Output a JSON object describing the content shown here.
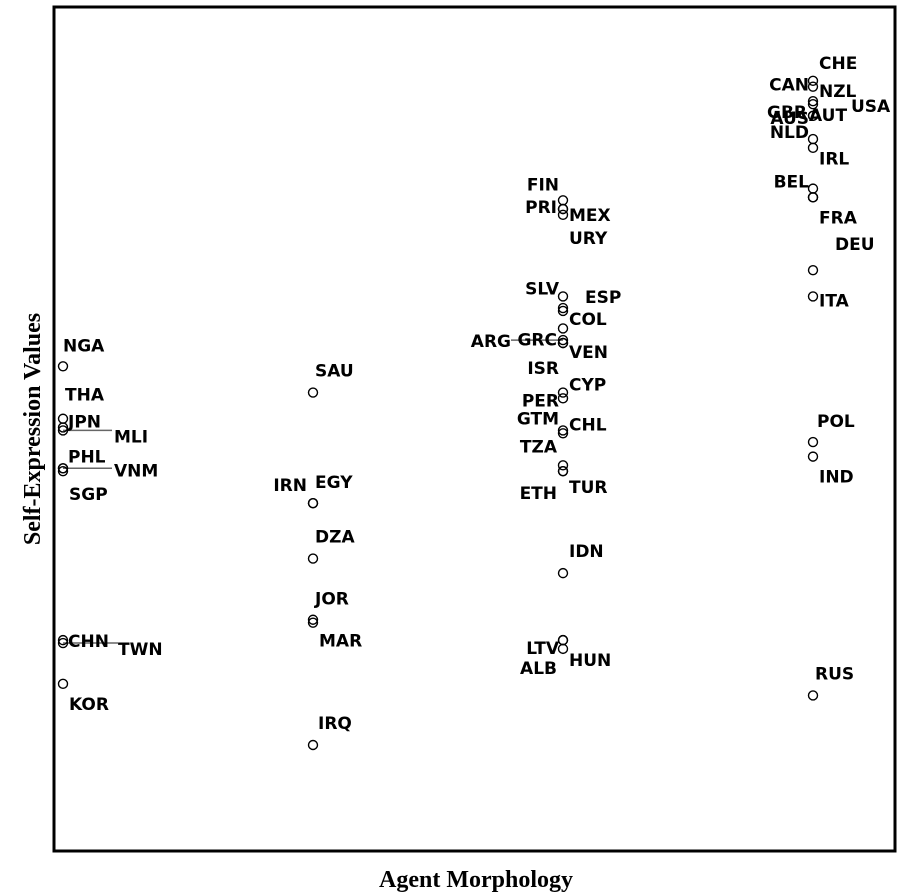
{
  "chart_data": {
    "type": "scatter",
    "title": "",
    "xlabel": "Agent Morphology",
    "ylabel": "Self-Expression Values",
    "xlim": [
      1,
      4
    ],
    "ylim": [
      -0.75,
      2.25
    ],
    "grid": false,
    "legend": "none",
    "points": [
      {
        "label": "CHE",
        "x": 4,
        "y": 2.16
      },
      {
        "label": "CAN",
        "x": 4,
        "y": 2.14
      },
      {
        "label": "NZL",
        "x": 4,
        "y": 2.09
      },
      {
        "label": "USA",
        "x": 4,
        "y": 2.08
      },
      {
        "label": "GBR",
        "x": 4,
        "y": 2.04
      },
      {
        "label": "AUS",
        "x": 4,
        "y": 2.04
      },
      {
        "label": "AUT",
        "x": 4,
        "y": 1.96
      },
      {
        "label": "NLD",
        "x": 4,
        "y": 1.93
      },
      {
        "label": "IRL",
        "x": 4,
        "y": 1.79
      },
      {
        "label": "BEL",
        "x": 4,
        "y": 1.76
      },
      {
        "label": "FRA",
        "x": 4,
        "y": 1.76
      },
      {
        "label": "DEU",
        "x": 4,
        "y": 1.51
      },
      {
        "label": "ITA",
        "x": 4,
        "y": 1.42
      },
      {
        "label": "POL",
        "x": 4,
        "y": 0.92
      },
      {
        "label": "IND",
        "x": 4,
        "y": 0.87
      },
      {
        "label": "RUS",
        "x": 4,
        "y": 0.05
      },
      {
        "label": "FIN",
        "x": 3,
        "y": 1.75
      },
      {
        "label": "MEX",
        "x": 3,
        "y": 1.72
      },
      {
        "label": "PRI",
        "x": 3,
        "y": 1.72
      },
      {
        "label": "URY",
        "x": 3,
        "y": 1.7
      },
      {
        "label": "SLV",
        "x": 3,
        "y": 1.42
      },
      {
        "label": "ESP",
        "x": 3,
        "y": 1.38
      },
      {
        "label": "COL",
        "x": 3,
        "y": 1.37
      },
      {
        "label": "GRC",
        "x": 3,
        "y": 1.31
      },
      {
        "label": "ARG",
        "x": 3,
        "y": 1.27
      },
      {
        "label": "VEN",
        "x": 3,
        "y": 1.26
      },
      {
        "label": "ISR",
        "x": 3,
        "y": 1.26
      },
      {
        "label": "PER",
        "x": 3,
        "y": 1.09
      },
      {
        "label": "CYP",
        "x": 3,
        "y": 1.07
      },
      {
        "label": "GTM",
        "x": 3,
        "y": 0.96
      },
      {
        "label": "CHL",
        "x": 3,
        "y": 0.95
      },
      {
        "label": "TZA",
        "x": 3,
        "y": 0.84
      },
      {
        "label": "TUR",
        "x": 3,
        "y": 0.82
      },
      {
        "label": "ETH",
        "x": 3,
        "y": 0.82
      },
      {
        "label": "IDN",
        "x": 3,
        "y": 0.47
      },
      {
        "label": "ALB",
        "x": 3,
        "y": 0.24
      },
      {
        "label": "LTV",
        "x": 3,
        "y": 0.24
      },
      {
        "label": "HUN",
        "x": 3,
        "y": 0.21
      },
      {
        "label": "SAU",
        "x": 2,
        "y": 1.09
      },
      {
        "label": "IRN",
        "x": 2,
        "y": 0.71
      },
      {
        "label": "EGY",
        "x": 2,
        "y": 0.71
      },
      {
        "label": "DZA",
        "x": 2,
        "y": 0.52
      },
      {
        "label": "JOR",
        "x": 2,
        "y": 0.31
      },
      {
        "label": "MAR",
        "x": 2,
        "y": 0.3
      },
      {
        "label": "IRQ",
        "x": 2,
        "y": -0.12
      },
      {
        "label": "NGA",
        "x": 1,
        "y": 1.18
      },
      {
        "label": "THA",
        "x": 1,
        "y": 1.0
      },
      {
        "label": "JPN",
        "x": 1,
        "y": 0.97
      },
      {
        "label": "MLI",
        "x": 1,
        "y": 0.96
      },
      {
        "label": "PHL",
        "x": 1,
        "y": 0.83
      },
      {
        "label": "VNM",
        "x": 1,
        "y": 0.83
      },
      {
        "label": "SGP",
        "x": 1,
        "y": 0.82
      },
      {
        "label": "CHN",
        "x": 1,
        "y": 0.24
      },
      {
        "label": "TWN",
        "x": 1,
        "y": 0.23
      },
      {
        "label": "KOR",
        "x": 1,
        "y": 0.09
      }
    ]
  }
}
